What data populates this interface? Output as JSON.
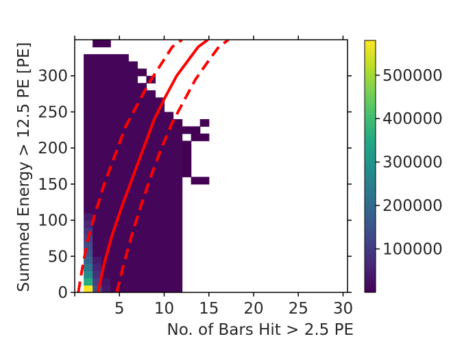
{
  "chart_data": {
    "type": "heatmap",
    "xlabel": "No. of Bars Hit > 2.5 PE",
    "ylabel": "Summed Energy > 12.5 PE [PE]",
    "xlim": [
      0,
      30.5
    ],
    "ylim": [
      0,
      350
    ],
    "xticks": [
      5,
      10,
      15,
      20,
      25,
      30
    ],
    "yticks": [
      0,
      50,
      100,
      150,
      200,
      250,
      300
    ],
    "colorbar": {
      "colormap": "viridis",
      "range": [
        0,
        580000
      ],
      "ticks": [
        100000,
        200000,
        300000,
        400000,
        500000
      ],
      "tick_labels": [
        "100000",
        "200000",
        "300000",
        "400000",
        "500000"
      ]
    },
    "bin_size": {
      "x": 1,
      "y": 10
    },
    "columns": [
      {
        "x": 1,
        "ymax": 330
      },
      {
        "x": 2,
        "ymax": 330
      },
      {
        "x": 3,
        "ymax": 330
      },
      {
        "x": 4,
        "ymax": 330
      },
      {
        "x": 5,
        "ymax": 330
      },
      {
        "x": 6,
        "ymax": 320
      },
      {
        "x": 7,
        "ymax": 290
      },
      {
        "x": 8,
        "ymax": 280
      },
      {
        "x": 9,
        "ymax": 270
      },
      {
        "x": 10,
        "ymax": 250
      },
      {
        "x": 11,
        "ymax": 240
      }
    ],
    "cells": [
      {
        "x": 2,
        "y": 340,
        "value": 20
      },
      {
        "x": 3,
        "y": 340,
        "value": 30
      },
      {
        "x": 7,
        "y": 300,
        "value": 10
      },
      {
        "x": 8,
        "y": 290,
        "value": 10
      },
      {
        "x": 11,
        "y": 230,
        "value": 10
      },
      {
        "x": 12,
        "y": 220,
        "value": 10
      },
      {
        "x": 13,
        "y": 210,
        "value": 10
      },
      {
        "x": 14,
        "y": 210,
        "value": 10
      },
      {
        "x": 13,
        "y": 220,
        "value": 10
      },
      {
        "x": 14,
        "y": 230,
        "value": 10
      },
      {
        "x": 12,
        "y": 190,
        "value": 10
      },
      {
        "x": 12,
        "y": 200,
        "value": 10
      },
      {
        "x": 12,
        "y": 170,
        "value": 10
      },
      {
        "x": 12,
        "y": 180,
        "value": 10
      },
      {
        "x": 12,
        "y": 160,
        "value": 10
      },
      {
        "x": 13,
        "y": 150,
        "value": 10
      },
      {
        "x": 14,
        "y": 150,
        "value": 10
      }
    ],
    "hot_cells": [
      {
        "x": 1,
        "y": 0,
        "value": 580000
      },
      {
        "x": 1,
        "y": 10,
        "value": 360000
      },
      {
        "x": 1,
        "y": 20,
        "value": 280000
      },
      {
        "x": 1,
        "y": 30,
        "value": 230000
      },
      {
        "x": 1,
        "y": 40,
        "value": 180000
      },
      {
        "x": 1,
        "y": 50,
        "value": 150000
      },
      {
        "x": 1,
        "y": 60,
        "value": 130000
      },
      {
        "x": 1,
        "y": 70,
        "value": 110000
      },
      {
        "x": 1,
        "y": 80,
        "value": 90000
      },
      {
        "x": 1,
        "y": 90,
        "value": 60000
      },
      {
        "x": 1,
        "y": 100,
        "value": 40000
      },
      {
        "x": 2,
        "y": 0,
        "value": 150000
      },
      {
        "x": 2,
        "y": 10,
        "value": 110000
      },
      {
        "x": 2,
        "y": 20,
        "value": 80000
      },
      {
        "x": 2,
        "y": 30,
        "value": 60000
      },
      {
        "x": 2,
        "y": 40,
        "value": 40000
      },
      {
        "x": 3,
        "y": 0,
        "value": 40000
      },
      {
        "x": 3,
        "y": 10,
        "value": 30000
      }
    ],
    "curves": [
      {
        "name": "center",
        "style": "solid",
        "x": [
          2.6,
          3.3,
          4.2,
          5.3,
          6.5,
          7.7,
          8.9,
          10.1,
          11.4,
          12.6,
          13.8,
          14.9
        ],
        "y": [
          0,
          40,
          80,
          120,
          160,
          200,
          240,
          270,
          300,
          320,
          340,
          350
        ]
      },
      {
        "name": "upper",
        "style": "dashed",
        "x": [
          0.4,
          0.8,
          1.4,
          2.3,
          3.3,
          4.5,
          5.7,
          7.0,
          8.3,
          9.6,
          10.9,
          12.0
        ],
        "y": [
          0,
          30,
          70,
          110,
          150,
          190,
          230,
          260,
          290,
          315,
          340,
          350
        ]
      },
      {
        "name": "lower",
        "style": "dashed",
        "x": [
          4.7,
          5.5,
          6.4,
          7.4,
          8.5,
          9.7,
          10.9,
          12.2,
          13.5,
          14.8,
          16.1,
          17.2
        ],
        "y": [
          0,
          40,
          80,
          120,
          160,
          200,
          235,
          265,
          295,
          318,
          340,
          350
        ]
      }
    ]
  }
}
